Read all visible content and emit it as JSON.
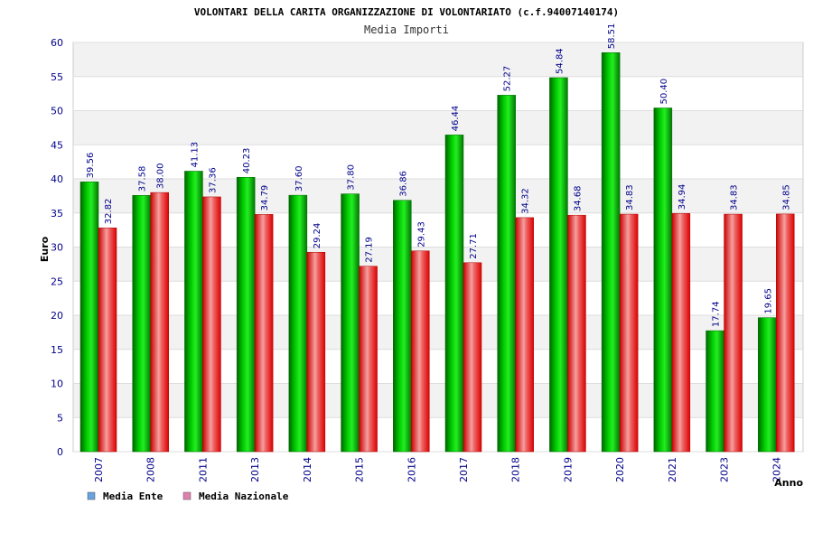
{
  "chart_data": {
    "type": "bar",
    "title": "VOLONTARI DELLA CARITA ORGANIZZAZIONE DI VOLONTARIATO (c.f.94007140174)",
    "subtitle": "Media Importi",
    "xlabel": "Anno",
    "ylabel": "Euro",
    "ylim": [
      0,
      60
    ],
    "yticks": [
      0,
      5,
      10,
      15,
      20,
      25,
      30,
      35,
      40,
      45,
      50,
      55,
      60
    ],
    "grid": true,
    "legend_position": "bottom-left",
    "categories": [
      "2007",
      "2008",
      "2011",
      "2013",
      "2014",
      "2015",
      "2016",
      "2017",
      "2018",
      "2019",
      "2020",
      "2021",
      "2023",
      "2024"
    ],
    "series": [
      {
        "name": "Media Ente",
        "color": "#00cc00",
        "legend_color": "#66a3e0",
        "values": [
          39.56,
          37.58,
          41.13,
          40.23,
          37.6,
          37.8,
          36.86,
          46.44,
          52.27,
          54.84,
          58.51,
          50.4,
          17.74,
          19.65
        ],
        "labels": [
          "39.56",
          "37.58",
          "41.13",
          "40.23",
          "37.60",
          "37.80",
          "36.86",
          "46.44",
          "52.27",
          "54.84",
          "58.51",
          "50.40",
          "17.74",
          "19.65"
        ]
      },
      {
        "name": "Media Nazionale",
        "color": "#ee1111",
        "legend_color": "#e080b0",
        "values": [
          32.82,
          38.0,
          37.36,
          34.79,
          29.24,
          27.19,
          29.43,
          27.71,
          34.32,
          34.68,
          34.83,
          34.94,
          34.83,
          34.85
        ],
        "labels": [
          "32.82",
          "38.00",
          "37.36",
          "34.79",
          "29.24",
          "27.19",
          "29.43",
          "27.71",
          "34.32",
          "34.68",
          "34.83",
          "34.94",
          "34.83",
          "34.85"
        ]
      }
    ]
  }
}
